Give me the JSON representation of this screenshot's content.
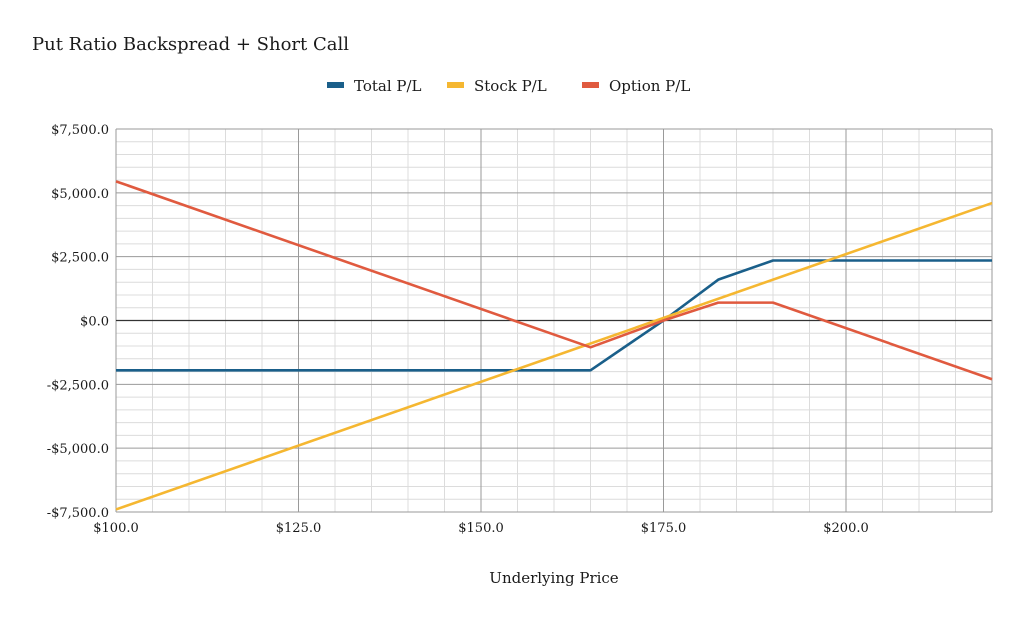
{
  "chart_data": {
    "type": "line",
    "title": "Put Ratio Backspread + Short Call",
    "xlabel": "Underlying Price",
    "ylabel": "",
    "xlim": [
      100,
      220
    ],
    "ylim": [
      -7500,
      7500
    ],
    "x_ticks": [
      100,
      125,
      150,
      175,
      200
    ],
    "x_tick_labels": [
      "$100.0",
      "$125.0",
      "$150.0",
      "$175.0",
      "$200.0"
    ],
    "y_ticks": [
      7500,
      5000,
      2500,
      0,
      -2500,
      -5000,
      -7500
    ],
    "y_tick_labels": [
      "$7,500.0",
      "$5,000.0",
      "$2,500.0",
      "$0.0",
      "-$2,500.0",
      "-$5,000.0",
      "-$7,500.0"
    ],
    "x_minor_step": 5,
    "y_minor_step": 500,
    "grid": true,
    "legend_position": "top-center",
    "series": [
      {
        "name": "Total P/L",
        "color": "#1a5f8a",
        "points": [
          [
            100,
            -1950
          ],
          [
            165,
            -1950
          ],
          [
            175,
            0
          ],
          [
            182.5,
            1600
          ],
          [
            190,
            2350
          ],
          [
            220,
            2350
          ]
        ]
      },
      {
        "name": "Stock P/L",
        "color": "#f5b731",
        "points": [
          [
            100,
            -7400
          ],
          [
            220,
            4600
          ]
        ]
      },
      {
        "name": "Option P/L",
        "color": "#e05a3f",
        "points": [
          [
            100,
            5450
          ],
          [
            165,
            -1050
          ],
          [
            175,
            0
          ],
          [
            182.5,
            700
          ],
          [
            190,
            700
          ],
          [
            220,
            -2300
          ]
        ]
      }
    ]
  }
}
